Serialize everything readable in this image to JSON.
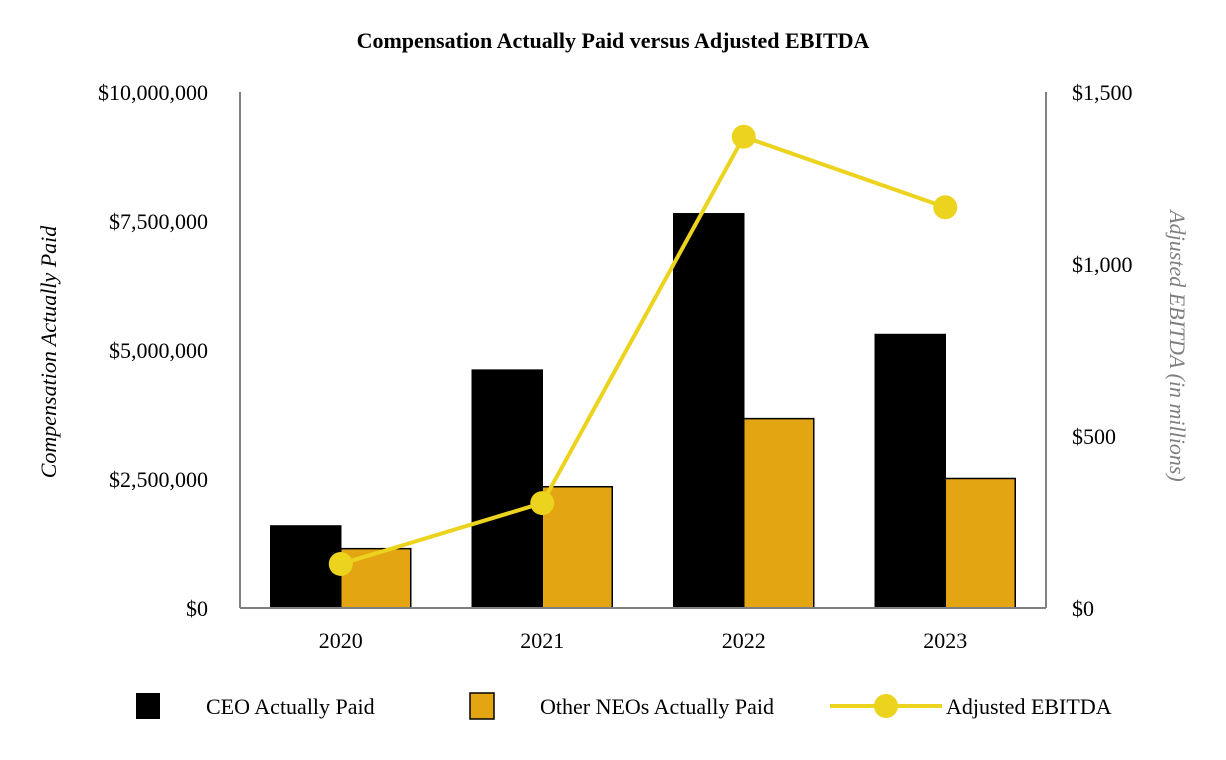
{
  "chart_data": {
    "type": "bar",
    "title": "Compensation Actually Paid versus Adjusted EBITDA",
    "categories": [
      "2020",
      "2021",
      "2022",
      "2023"
    ],
    "series": [
      {
        "name": "CEO Actually Paid",
        "axis": "left",
        "kind": "bar",
        "color": "#000000",
        "values": [
          1590000,
          4610000,
          7640000,
          5300000
        ]
      },
      {
        "name": "Other NEOs Actually Paid",
        "axis": "left",
        "kind": "bar",
        "color": "#e3a612",
        "values": [
          1150000,
          2350000,
          3670000,
          2510000
        ]
      },
      {
        "name": "Adjusted EBITDA",
        "axis": "right",
        "kind": "line",
        "color": "#ebd31e",
        "values": [
          128,
          305,
          1370,
          1165
        ]
      }
    ],
    "ylabel": "Compensation Actually Paid",
    "ylabel_right": "Adjusted EBITDA (in millions)",
    "ylim": [
      0,
      10000000
    ],
    "ylim_right": [
      0,
      1500
    ],
    "yticks": [
      {
        "value": 0,
        "label": "$0"
      },
      {
        "value": 2500000,
        "label": "$2,500,000"
      },
      {
        "value": 5000000,
        "label": "$5,000,000"
      },
      {
        "value": 7500000,
        "label": "$7,500,000"
      },
      {
        "value": 10000000,
        "label": "$10,000,000"
      }
    ],
    "yticks_right": [
      {
        "value": 0,
        "label": "$0"
      },
      {
        "value": 500,
        "label": "$500"
      },
      {
        "value": 1000,
        "label": "$1,000"
      },
      {
        "value": 1500,
        "label": "$1,500"
      }
    ],
    "legend": {
      "position": "bottom",
      "items": [
        "CEO Actually Paid",
        "Other NEOs Actually Paid",
        "Adjusted EBITDA"
      ]
    },
    "axis_color": "#808080",
    "grid": false
  }
}
